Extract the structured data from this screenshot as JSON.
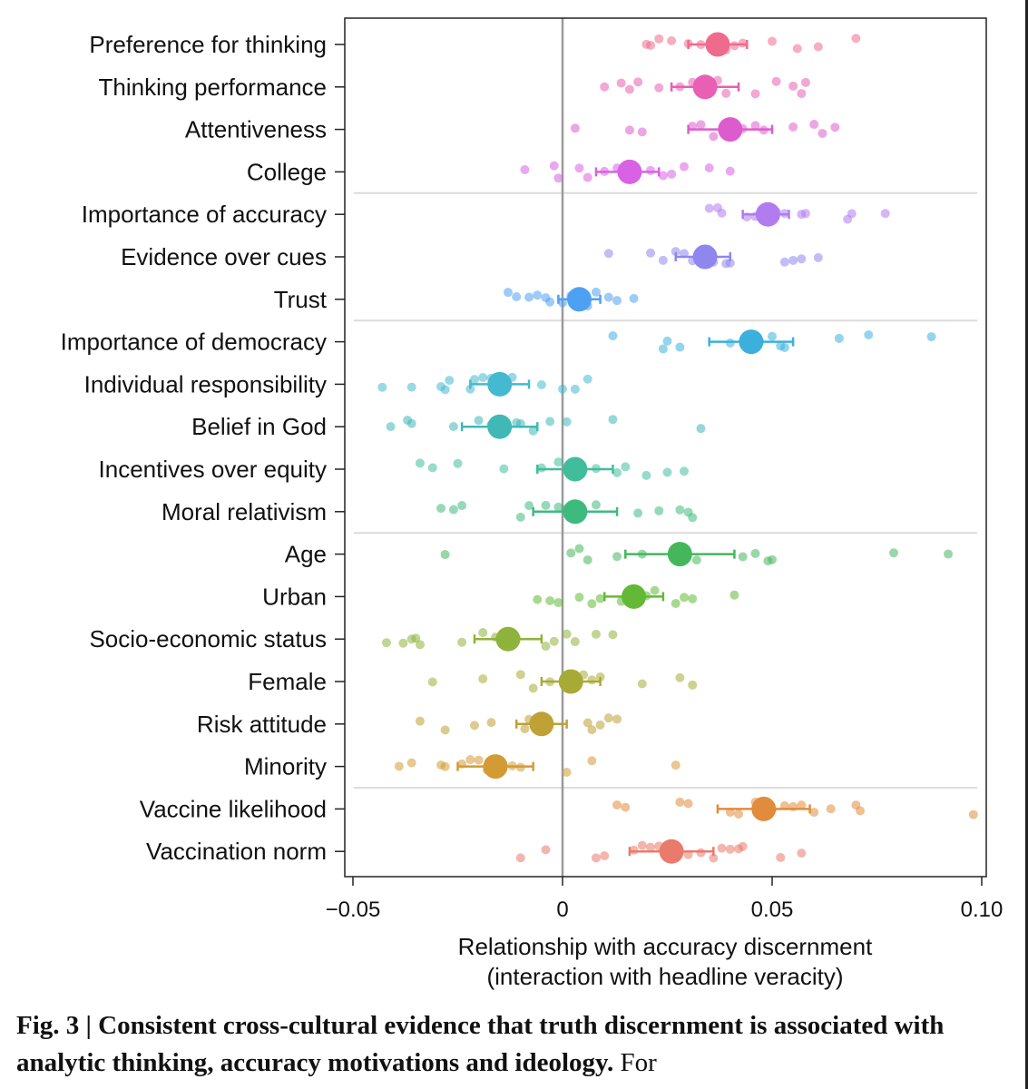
{
  "chart_data": {
    "type": "scatter",
    "orientation": "horizontal-forest-plot",
    "xlabel": "Relationship with accuracy discernment",
    "xlabel_line2": "(interaction with headline veracity)",
    "xlim": [
      -0.052,
      0.101
    ],
    "xticks": [
      -0.05,
      0,
      0.05,
      0.1
    ],
    "xtick_labels": [
      "−0.05",
      "0",
      "0.05",
      "0.10"
    ],
    "reference_line": 0,
    "group_separators_after": [
      "College",
      "Trust",
      "Moral relativism",
      "Minority"
    ],
    "series": [
      {
        "name": "Preference for thinking",
        "color": "#ee6b8e",
        "estimate": 0.037,
        "ci": [
          0.03,
          0.044
        ],
        "country_points": [
          0.02,
          0.021,
          0.023,
          0.026,
          0.03,
          0.033,
          0.036,
          0.039,
          0.041,
          0.043,
          0.05,
          0.056,
          0.061,
          0.07
        ]
      },
      {
        "name": "Thinking performance",
        "color": "#e85fb3",
        "estimate": 0.034,
        "ci": [
          0.026,
          0.042
        ],
        "country_points": [
          0.01,
          0.014,
          0.016,
          0.018,
          0.023,
          0.028,
          0.031,
          0.037,
          0.039,
          0.046,
          0.051,
          0.055,
          0.057,
          0.058
        ]
      },
      {
        "name": "Attentiveness",
        "color": "#dd5ccd",
        "estimate": 0.04,
        "ci": [
          0.03,
          0.05
        ],
        "country_points": [
          0.003,
          0.016,
          0.019,
          0.031,
          0.033,
          0.036,
          0.043,
          0.046,
          0.048,
          0.055,
          0.06,
          0.062,
          0.065
        ]
      },
      {
        "name": "College",
        "color": "#d961e3",
        "estimate": 0.016,
        "ci": [
          0.008,
          0.023
        ],
        "country_points": [
          -0.009,
          -0.002,
          -0.001,
          0.004,
          0.006,
          0.01,
          0.013,
          0.016,
          0.021,
          0.024,
          0.026,
          0.029,
          0.035,
          0.04
        ]
      },
      {
        "name": "Importance of accuracy",
        "color": "#b07cf0",
        "estimate": 0.049,
        "ci": [
          0.043,
          0.054
        ],
        "country_points": [
          0.035,
          0.037,
          0.038,
          0.044,
          0.046,
          0.049,
          0.051,
          0.053,
          0.057,
          0.058,
          0.068,
          0.069,
          0.077
        ]
      },
      {
        "name": "Evidence over cues",
        "color": "#8f86ee",
        "estimate": 0.034,
        "ci": [
          0.027,
          0.04
        ],
        "country_points": [
          0.011,
          0.021,
          0.024,
          0.027,
          0.029,
          0.031,
          0.036,
          0.039,
          0.04,
          0.053,
          0.055,
          0.057,
          0.061
        ]
      },
      {
        "name": "Trust",
        "color": "#4ea1f2",
        "estimate": 0.004,
        "ci": [
          -0.001,
          0.009
        ],
        "country_points": [
          -0.013,
          -0.011,
          -0.008,
          -0.006,
          -0.004,
          -0.003,
          0.0,
          0.002,
          0.006,
          0.008,
          0.011,
          0.013,
          0.017
        ]
      },
      {
        "name": "Importance of democracy",
        "color": "#3cb0dd",
        "estimate": 0.045,
        "ci": [
          0.035,
          0.055
        ],
        "country_points": [
          0.012,
          0.024,
          0.025,
          0.028,
          0.04,
          0.047,
          0.05,
          0.052,
          0.053,
          0.066,
          0.073,
          0.088
        ]
      },
      {
        "name": "Individual responsibility",
        "color": "#44b9cf",
        "estimate": -0.015,
        "ci": [
          -0.022,
          -0.008
        ],
        "country_points": [
          -0.043,
          -0.036,
          -0.029,
          -0.028,
          -0.027,
          -0.022,
          -0.021,
          -0.019,
          -0.017,
          -0.012,
          -0.005,
          0.0,
          0.003,
          0.006
        ]
      },
      {
        "name": "Belief in God",
        "color": "#40b8b6",
        "estimate": -0.015,
        "ci": [
          -0.024,
          -0.006
        ],
        "country_points": [
          -0.041,
          -0.037,
          -0.036,
          -0.026,
          -0.02,
          -0.017,
          -0.011,
          -0.01,
          -0.007,
          -0.003,
          0.001,
          0.012,
          0.033
        ]
      },
      {
        "name": "Incentives over equity",
        "color": "#41bd9c",
        "estimate": 0.003,
        "ci": [
          -0.006,
          0.012
        ],
        "country_points": [
          -0.034,
          -0.031,
          -0.025,
          -0.014,
          -0.005,
          -0.001,
          0.004,
          0.008,
          0.013,
          0.015,
          0.02,
          0.025,
          0.029
        ]
      },
      {
        "name": "Moral relativism",
        "color": "#3fba7f",
        "estimate": 0.003,
        "ci": [
          -0.007,
          0.013
        ],
        "country_points": [
          -0.029,
          -0.026,
          -0.024,
          -0.01,
          -0.008,
          -0.004,
          -0.001,
          0.001,
          0.008,
          0.018,
          0.023,
          0.028,
          0.03,
          0.031
        ]
      },
      {
        "name": "Age",
        "color": "#45b65c",
        "estimate": 0.028,
        "ci": [
          0.015,
          0.041
        ],
        "country_points": [
          -0.028,
          0.002,
          0.004,
          0.006,
          0.013,
          0.019,
          0.032,
          0.043,
          0.046,
          0.049,
          0.05,
          0.079,
          0.092
        ]
      },
      {
        "name": "Urban",
        "color": "#63b936",
        "estimate": 0.017,
        "ci": [
          0.01,
          0.024
        ],
        "country_points": [
          -0.006,
          -0.003,
          -0.001,
          0.004,
          0.007,
          0.009,
          0.014,
          0.02,
          0.022,
          0.027,
          0.029,
          0.031,
          0.041
        ]
      },
      {
        "name": "Socio-economic status",
        "color": "#8eb33c",
        "estimate": -0.013,
        "ci": [
          -0.021,
          -0.005
        ],
        "country_points": [
          -0.042,
          -0.038,
          -0.036,
          -0.035,
          -0.034,
          -0.024,
          -0.019,
          -0.016,
          -0.011,
          -0.004,
          -0.002,
          0.001,
          0.003,
          0.008,
          0.012
        ]
      },
      {
        "name": "Female",
        "color": "#a7ab36",
        "estimate": 0.002,
        "ci": [
          -0.005,
          0.009
        ],
        "country_points": [
          -0.031,
          -0.019,
          -0.01,
          -0.007,
          -0.003,
          0.005,
          0.007,
          0.009,
          0.019,
          0.028,
          0.031
        ]
      },
      {
        "name": "Risk attitude",
        "color": "#bfa136",
        "estimate": -0.005,
        "ci": [
          -0.011,
          0.001
        ],
        "country_points": [
          -0.034,
          -0.028,
          -0.021,
          -0.017,
          -0.009,
          -0.008,
          -0.006,
          0.006,
          0.007,
          0.009,
          0.011,
          0.013
        ]
      },
      {
        "name": "Minority",
        "color": "#d49a33",
        "estimate": -0.016,
        "ci": [
          -0.025,
          -0.007
        ],
        "country_points": [
          -0.039,
          -0.036,
          -0.029,
          -0.028,
          -0.024,
          -0.022,
          -0.02,
          -0.018,
          -0.012,
          -0.01,
          0.001,
          0.007,
          0.027
        ]
      },
      {
        "name": "Vaccine likelihood",
        "color": "#e08c3c",
        "estimate": 0.048,
        "ci": [
          0.037,
          0.059
        ],
        "country_points": [
          0.013,
          0.015,
          0.028,
          0.03,
          0.04,
          0.042,
          0.046,
          0.05,
          0.053,
          0.055,
          0.057,
          0.06,
          0.064,
          0.07,
          0.071,
          0.098
        ]
      },
      {
        "name": "Vaccination norm",
        "color": "#ea7a6b",
        "estimate": 0.026,
        "ci": [
          0.016,
          0.036
        ],
        "country_points": [
          -0.01,
          -0.004,
          0.008,
          0.01,
          0.017,
          0.019,
          0.021,
          0.023,
          0.03,
          0.033,
          0.036,
          0.038,
          0.04,
          0.042,
          0.043,
          0.052,
          0.057
        ]
      }
    ]
  },
  "caption": {
    "bold_text": "Fig. 3 | Consistent cross-cultural evidence that truth discernment is associated with analytic thinking, accuracy motivations and ideology.",
    "normal_text": " For"
  }
}
